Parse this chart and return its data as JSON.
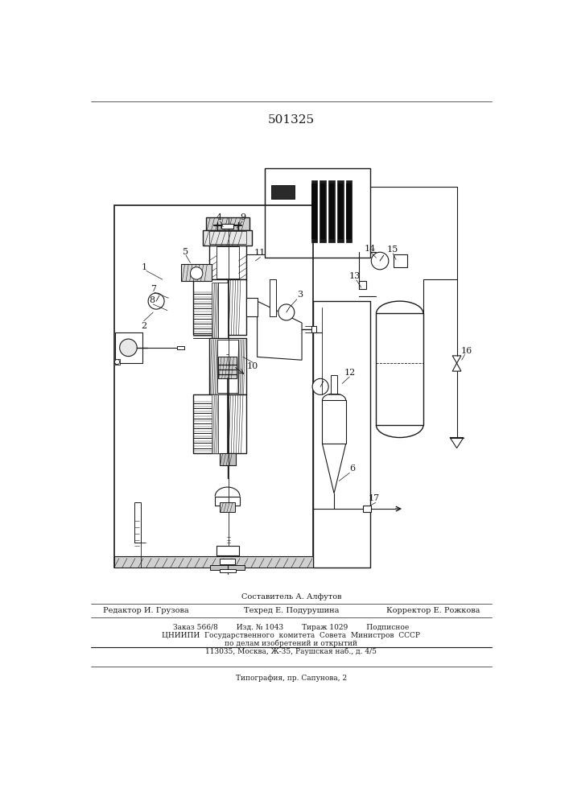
{
  "patent_number": "501325",
  "bg_color": "#ffffff",
  "lc": "#1a1a1a",
  "footer_text1": "Составитель А. Алфутов",
  "footer_text2": "Редактор И. Грузова",
  "footer_text3": "Техред Е. Подурушина",
  "footer_text4": "Корректор Е. Рожкова",
  "footer_text5": "Заказ 566/8        Изд. № 1043        Тираж 1029        Подписное",
  "footer_text6": "ЦНИИПИ  Государственного  комитета  Совета  Министров  СССР",
  "footer_text7": "по делам изобретений и открытий",
  "footer_text8": "113035, Москва, Ж-35, Раушская наб., д. 4/5",
  "footer_text9": "Типография, пр. Сапунова, 2"
}
